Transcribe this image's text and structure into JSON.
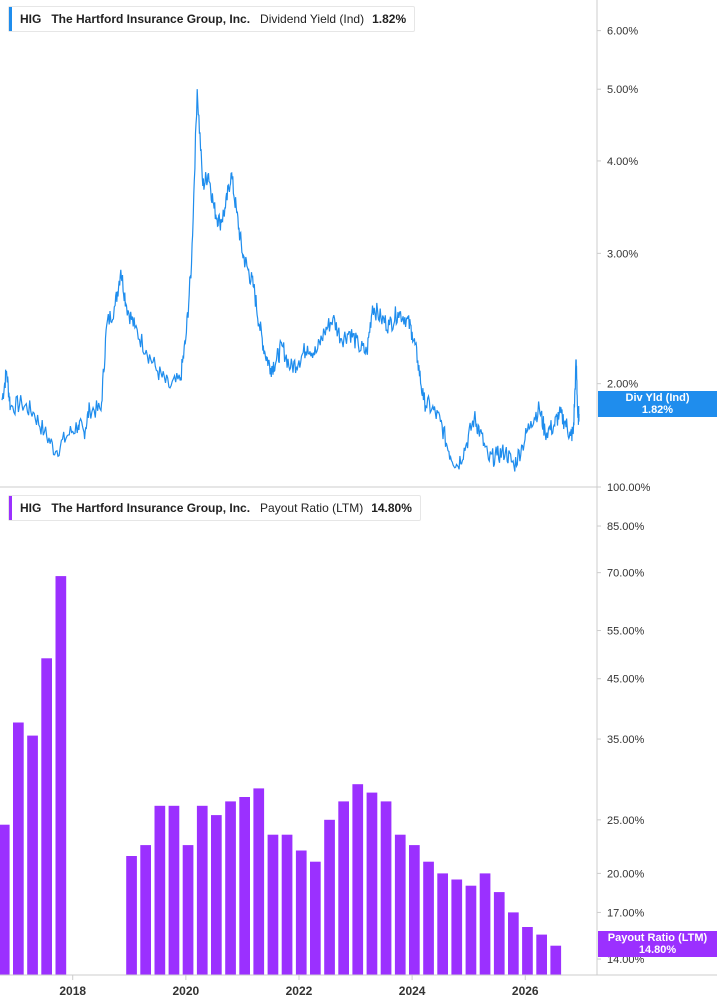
{
  "colors": {
    "yield": "#1f8ded",
    "payout": "#9b30ff",
    "axis": "#cccccc"
  },
  "top_legend": {
    "ticker": "HIG",
    "company": "The Hartford Insurance Group, Inc.",
    "metric": "Dividend Yield (Ind)",
    "value": "1.82%"
  },
  "bottom_legend": {
    "ticker": "HIG",
    "company": "The Hartford Insurance Group, Inc.",
    "metric": "Payout Ratio (LTM)",
    "value": "14.80%"
  },
  "top_tag": {
    "label": "Div Yld (Ind)",
    "value": "1.82%"
  },
  "bottom_tag": {
    "label": "Payout Ratio (LTM)",
    "value": "14.80%"
  },
  "chart_data": [
    {
      "type": "line",
      "scale": "log",
      "series_name": "Dividend Yield (Ind)",
      "y_ticks": [
        "6.00%",
        "5.00%",
        "4.00%",
        "3.00%",
        "2.00%"
      ],
      "y_tick_values": [
        6.0,
        5.0,
        4.0,
        3.0,
        2.0
      ],
      "ylim": [
        1.45,
        6.6
      ],
      "xlim": [
        2016.75,
        2026.95
      ],
      "points": [
        [
          2016.75,
          1.9
        ],
        [
          2016.83,
          2.08
        ],
        [
          2016.9,
          1.86
        ],
        [
          2017.1,
          1.88
        ],
        [
          2017.3,
          1.83
        ],
        [
          2017.5,
          1.72
        ],
        [
          2017.7,
          1.62
        ],
        [
          2017.9,
          1.7
        ],
        [
          2018.1,
          1.76
        ],
        [
          2018.2,
          1.72
        ],
        [
          2018.3,
          1.85
        ],
        [
          2018.5,
          1.84
        ],
        [
          2018.6,
          2.4
        ],
        [
          2018.75,
          2.55
        ],
        [
          2018.85,
          2.85
        ],
        [
          2018.95,
          2.55
        ],
        [
          2019.1,
          2.38
        ],
        [
          2019.3,
          2.22
        ],
        [
          2019.5,
          2.08
        ],
        [
          2019.7,
          1.98
        ],
        [
          2019.9,
          2.02
        ],
        [
          2020.0,
          2.3
        ],
        [
          2020.1,
          2.9
        ],
        [
          2020.2,
          5.0
        ],
        [
          2020.3,
          3.7
        ],
        [
          2020.4,
          3.85
        ],
        [
          2020.5,
          3.45
        ],
        [
          2020.6,
          3.3
        ],
        [
          2020.7,
          3.45
        ],
        [
          2020.8,
          3.85
        ],
        [
          2020.9,
          3.4
        ],
        [
          2021.0,
          3.0
        ],
        [
          2021.1,
          2.85
        ],
        [
          2021.2,
          2.7
        ],
        [
          2021.3,
          2.4
        ],
        [
          2021.4,
          2.2
        ],
        [
          2021.5,
          2.1
        ],
        [
          2021.6,
          2.15
        ],
        [
          2021.7,
          2.25
        ],
        [
          2021.85,
          2.1
        ],
        [
          2022.0,
          2.15
        ],
        [
          2022.15,
          2.25
        ],
        [
          2022.3,
          2.2
        ],
        [
          2022.45,
          2.35
        ],
        [
          2022.6,
          2.45
        ],
        [
          2022.75,
          2.3
        ],
        [
          2022.9,
          2.35
        ],
        [
          2023.05,
          2.25
        ],
        [
          2023.2,
          2.2
        ],
        [
          2023.3,
          2.55
        ],
        [
          2023.45,
          2.45
        ],
        [
          2023.6,
          2.4
        ],
        [
          2023.75,
          2.5
        ],
        [
          2023.9,
          2.45
        ],
        [
          2024.0,
          2.35
        ],
        [
          2024.1,
          2.15
        ],
        [
          2024.2,
          1.9
        ],
        [
          2024.35,
          1.85
        ],
        [
          2024.5,
          1.78
        ],
        [
          2024.65,
          1.62
        ],
        [
          2024.8,
          1.55
        ],
        [
          2024.95,
          1.65
        ],
        [
          2025.1,
          1.8
        ],
        [
          2025.2,
          1.72
        ],
        [
          2025.35,
          1.58
        ],
        [
          2025.5,
          1.6
        ],
        [
          2025.65,
          1.62
        ],
        [
          2025.8,
          1.55
        ],
        [
          2025.95,
          1.65
        ],
        [
          2026.1,
          1.78
        ],
        [
          2026.25,
          1.85
        ],
        [
          2026.35,
          1.72
        ],
        [
          2026.5,
          1.75
        ],
        [
          2026.6,
          1.82
        ],
        [
          2026.7,
          1.78
        ],
        [
          2026.8,
          1.7
        ],
        [
          2026.85,
          1.72
        ],
        [
          2026.9,
          2.15
        ],
        [
          2026.93,
          1.8
        ],
        [
          2026.95,
          1.82
        ]
      ]
    },
    {
      "type": "bar",
      "scale": "log",
      "series_name": "Payout Ratio (LTM)",
      "y_ticks": [
        "100.00%",
        "85.00%",
        "70.00%",
        "55.00%",
        "45.00%",
        "35.00%",
        "25.00%",
        "20.00%",
        "17.00%",
        "14.00%"
      ],
      "y_tick_values": [
        100,
        85,
        70,
        55,
        45,
        35,
        25,
        20,
        17,
        14
      ],
      "ylim": [
        13.1,
        100
      ],
      "x_ticks": [
        "2018",
        "2020",
        "2022",
        "2024",
        "2026"
      ],
      "x_tick_values": [
        2018,
        2020,
        2022,
        2024,
        2026
      ],
      "xlim": [
        2016.75,
        2026.95
      ],
      "bar_width_years": 0.19,
      "bars": [
        [
          2016.79,
          24.5
        ],
        [
          2017.04,
          37.5
        ],
        [
          2017.29,
          35.5
        ],
        [
          2017.54,
          49.0
        ],
        [
          2017.79,
          69.0
        ],
        [
          2019.04,
          21.5
        ],
        [
          2019.29,
          22.5
        ],
        [
          2019.54,
          26.5
        ],
        [
          2019.79,
          26.5
        ],
        [
          2020.04,
          22.5
        ],
        [
          2020.29,
          26.5
        ],
        [
          2020.54,
          25.5
        ],
        [
          2020.79,
          27.0
        ],
        [
          2021.04,
          27.5
        ],
        [
          2021.29,
          28.5
        ],
        [
          2021.54,
          23.5
        ],
        [
          2021.79,
          23.5
        ],
        [
          2022.04,
          22.0
        ],
        [
          2022.29,
          21.0
        ],
        [
          2022.54,
          25.0
        ],
        [
          2022.79,
          27.0
        ],
        [
          2023.04,
          29.0
        ],
        [
          2023.29,
          28.0
        ],
        [
          2023.54,
          27.0
        ],
        [
          2023.79,
          23.5
        ],
        [
          2024.04,
          22.5
        ],
        [
          2024.29,
          21.0
        ],
        [
          2024.54,
          20.0
        ],
        [
          2024.79,
          19.5
        ],
        [
          2025.04,
          19.0
        ],
        [
          2025.29,
          20.0
        ],
        [
          2025.54,
          18.5
        ],
        [
          2025.79,
          17.0
        ],
        [
          2026.04,
          16.0
        ],
        [
          2026.29,
          15.5
        ],
        [
          2026.54,
          14.8
        ]
      ]
    }
  ]
}
